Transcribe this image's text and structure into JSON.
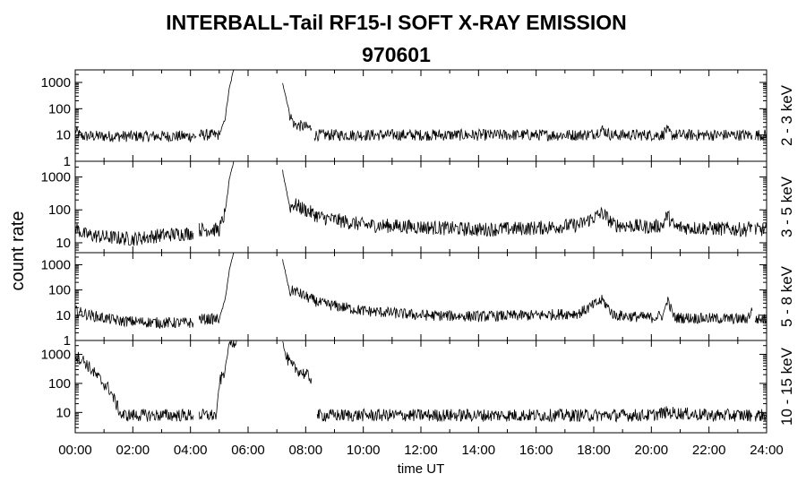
{
  "chart_data": {
    "type": "line",
    "title": "INTERBALL-Tail RF15-I SOFT X-RAY EMISSION",
    "subtitle": "970601",
    "xlabel": "time UT",
    "ylabel": "count rate",
    "x_ticks": [
      "00:00",
      "02:00",
      "04:00",
      "06:00",
      "08:00",
      "10:00",
      "12:00",
      "14:00",
      "16:00",
      "18:00",
      "20:00",
      "22:00",
      "24:00"
    ],
    "xlim_hours": [
      0,
      24
    ],
    "y_scale": "log",
    "series": [
      {
        "name": "2 - 3 keV",
        "ylim": [
          1,
          3000
        ],
        "y_ticks": [
          "1000",
          "100",
          "10",
          "1"
        ],
        "segments": [
          {
            "x": [
              0,
              0.2,
              4.2
            ],
            "y": [
              15,
              9,
              9
            ]
          },
          {
            "x": [
              4.3,
              5.0,
              5.2,
              5.35,
              5.5
            ],
            "y": [
              10,
              10,
              40,
              600,
              3000
            ]
          },
          {
            "x": [
              7.2,
              7.45,
              7.6
            ],
            "y": [
              1000,
              60,
              25
            ]
          },
          {
            "x": [
              7.6,
              8.2
            ],
            "y": [
              25,
              18
            ]
          },
          {
            "x": [
              8.3,
              10,
              12,
              14,
              16,
              17.5,
              18,
              18.3,
              18.6,
              20.4,
              20.5,
              20.7,
              23.5
            ],
            "y": [
              10,
              10,
              10,
              10,
              10,
              10,
              11,
              16,
              10,
              10,
              16,
              10,
              10
            ]
          },
          {
            "x": [
              23.6,
              24
            ],
            "y": [
              10,
              10
            ]
          }
        ]
      },
      {
        "name": "3 - 5 keV",
        "ylim": [
          5,
          3000
        ],
        "y_ticks": [
          "1000",
          "100",
          "10"
        ],
        "segments": [
          {
            "x": [
              0,
              0.3,
              1,
              2,
              3,
              4.1
            ],
            "y": [
              30,
              18,
              15,
              13,
              17,
              20
            ]
          },
          {
            "x": [
              4.3,
              5.0,
              5.2,
              5.35,
              5.5
            ],
            "y": [
              25,
              25,
              80,
              800,
              3000
            ]
          },
          {
            "x": [
              7.2,
              7.45,
              7.6,
              7.8,
              8.5,
              10,
              12,
              14,
              16,
              17.5,
              18.3,
              18.7,
              20,
              20.4,
              20.55,
              20.8,
              23.3,
              23.5
            ],
            "y": [
              1500,
              120,
              150,
              120,
              60,
              35,
              30,
              25,
              28,
              35,
              80,
              35,
              30,
              35,
              70,
              30,
              25,
              35
            ]
          },
          {
            "x": [
              23.6,
              24
            ],
            "y": [
              25,
              25
            ]
          }
        ]
      },
      {
        "name": "5 - 8 keV",
        "ylim": [
          1,
          3000
        ],
        "y_ticks": [
          "1000",
          "100",
          "10",
          "1"
        ],
        "segments": [
          {
            "x": [
              0,
              0.5,
              1.5,
              3,
              4.1
            ],
            "y": [
              15,
              10,
              6,
              5,
              5
            ]
          },
          {
            "x": [
              4.3,
              5.0,
              5.2,
              5.35,
              5.5
            ],
            "y": [
              7,
              7,
              40,
              600,
              3000
            ]
          },
          {
            "x": [
              7.2,
              7.45,
              7.6,
              7.8,
              8.5,
              10,
              12,
              14,
              16,
              17.5,
              18.3,
              18.7,
              20,
              20.4,
              20.55,
              20.8,
              23.3,
              23.5
            ],
            "y": [
              1500,
              80,
              100,
              70,
              30,
              15,
              10,
              9,
              10,
              12,
              40,
              10,
              8,
              10,
              40,
              8,
              7,
              15
            ]
          },
          {
            "x": [
              23.6,
              24
            ],
            "y": [
              7,
              7
            ]
          }
        ]
      },
      {
        "name": "10 - 15 keV",
        "ylim": [
          2,
          3000
        ],
        "y_ticks": [
          "1000",
          "100",
          "10"
        ],
        "segments": [
          {
            "x": [
              0,
              0.3,
              0.7,
              1.2,
              1.6,
              4.1
            ],
            "y": [
              900,
              600,
              200,
              60,
              8,
              8
            ]
          },
          {
            "x": [
              4.3,
              4.9,
              5.0,
              5.2,
              5.35,
              5.6
            ],
            "y": [
              8,
              8,
              100,
              300,
              2500,
              3000
            ]
          },
          {
            "x": [
              7.2,
              7.3,
              7.5,
              8.0,
              8.2
            ],
            "y": [
              3000,
              900,
              400,
              200,
              150
            ]
          },
          {
            "x": [
              8.4,
              10,
              12,
              14,
              16,
              18,
              20,
              20.5,
              22,
              23.5
            ],
            "y": [
              8,
              8,
              8,
              8,
              8,
              8,
              8,
              10,
              8,
              8
            ]
          },
          {
            "x": [
              23.6,
              24
            ],
            "y": [
              8,
              8
            ]
          }
        ]
      }
    ]
  }
}
